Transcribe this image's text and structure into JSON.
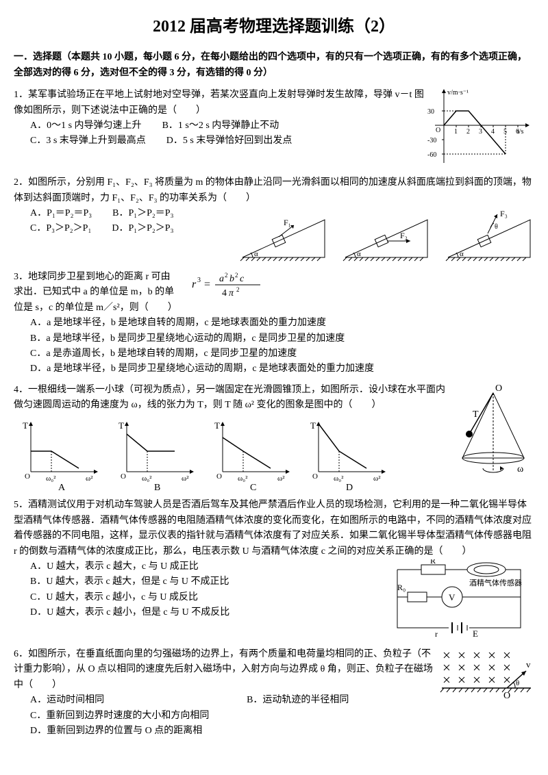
{
  "title": "2012 届高考物理选择题训练（2）",
  "instructions": "一．选择题（本题共 10 小题，每小题 6 分，在每小题给出的四个选项中，有的只有一个选项正确，有的有多个选项正确，全部选对的得 6 分，选对但不全的得 3 分，有选错的得 0 分）",
  "q1": {
    "text": "1．某军事试验场正在平地上试射地对空导弹，若某次竖直向上发射导弹时发生故障，导弹 v－t 图像如图所示，则下述说法中正确的是（　　）",
    "A": "A．0～1 s 内导弹匀速上升",
    "B": "B．1 s～2 s 内导弹静止不动",
    "C": "C．3 s 末导弹上升到最高点",
    "D": "D．5 s 末导弹恰好回到出发点",
    "chart": {
      "ylabel": "v/m·s⁻¹",
      "xlabel": "t/s",
      "yticks": [
        -60,
        -30,
        0,
        30
      ],
      "xticks": [
        0,
        1,
        2,
        3,
        4,
        5,
        6
      ],
      "points": [
        [
          0,
          0
        ],
        [
          1,
          30
        ],
        [
          2,
          30
        ],
        [
          3,
          0
        ],
        [
          5,
          -60
        ]
      ],
      "axis_color": "#000",
      "line_color": "#000"
    }
  },
  "q2": {
    "text": "2．如图所示，分别用 F₁、F₂、F₃ 将质量为 m 的物体由静止沿同一光滑斜面以相同的加速度从斜面底端拉到斜面的顶端，物体到达斜面顶端时，力 F₁、F₂、F₃ 的功率关系为（　　）",
    "A": "A．P₁＝P₂＝P₃",
    "B": "B．P₁＞P₂＝P₃",
    "C": "C．P₃＞P₂＞P₁",
    "D": "D．P₁＞P₂＞P₃",
    "diagram": {
      "angle_label": "α",
      "force_labels": [
        "F₁",
        "F₂",
        "F₃"
      ],
      "theta_label": "θ",
      "line_color": "#000"
    }
  },
  "q3": {
    "text_a": "3．地球同步卫星到地心的距离 r 可由",
    "text_b": "求出．已知式中 a 的单位是 m，b 的单",
    "text_c": "位是 s，c 的单位是 m／s²，则（　　）",
    "formula_img_alt": "r³ = a²b²c / 4π²",
    "A": "A．a 是地球半径，b 是地球自转的周期，c 是地球表面处的重力加速度",
    "B": "B．a 是地球半径，b 是同步卫星绕地心运动的周期，c 是同步卫星的加速度",
    "C": "C．a 是赤道周长，b 是地球自转的周期，c 是同步卫星的加速度",
    "D": "D．a 是地球半径，b 是同步卫星绕地心运动的周期，c 是地球表面处的重力加速度"
  },
  "q4": {
    "text": "4．一根细线一端系一小球（可视为质点），另一端固定在光滑圆锥顶上，如图所示．设小球在水平面内做匀速圆周运动的角速度为 ω，线的张力为 T，则 T 随 ω² 变化的图象是图中的（　　）",
    "xlabels": [
      "ω₀²",
      "ω²"
    ],
    "ylabel": "T",
    "opt_labels": [
      "A",
      "B",
      "C",
      "D"
    ],
    "cone_labels": {
      "T": "T",
      "O": "O",
      "omega": "ω"
    },
    "line_color": "#000"
  },
  "q5": {
    "text": "5．酒精测试仪用于对机动车驾驶人员是否酒后驾车及其他严禁酒后作业人员的现场检测，它利用的是一种二氧化锡半导体型酒精气体传感器．酒精气体传感器的电阻随酒精气体浓度的变化而变化，在如图所示的电路中，不同的酒精气体浓度对应着传感器的不同电阻，这样，显示仪表的指针就与酒精气体浓度有了对应关系．如果二氧化锡半导体型酒精气体传感器电阻 r 的倒数与酒精气体的浓度成正比，那么，电压表示数 U 与酒精气体浓度 c 之间的对应关系正确的是（　　）",
    "A": "A．U 越大，表示 c 越大，c 与 U 成正比",
    "B": "B．U 越大，表示 c 越大，但是 c 与 U 不成正比",
    "C": "C．U 越大，表示 c 越小，c 与 U 成反比",
    "D": "D．U 越大，表示 c 越小，但是 c 与 U 不成反比",
    "circuit": {
      "R": "R",
      "R0": "R₀",
      "V": "V",
      "r": "r",
      "E": "E",
      "sensor_label": "酒精气体传感器",
      "line_color": "#000"
    }
  },
  "q6": {
    "text": "6．如图所示，在垂直纸面向里的匀强磁场的边界上，有两个质量和电荷量均相同的正、负粒子（不计重力影响），从 O 点以相同的速度先后射入磁场中，入射方向与边界成 θ 角，则正、负粒子在磁场中（　　）",
    "A": "A．运动时间相同",
    "B": "B．运动轨迹的半径相同",
    "C": "C．重新回到边界时速度的大小和方向相同",
    "D": "D．重新回到边界的位置与 O 点的距离相",
    "diagram": {
      "theta": "θ",
      "v": "v",
      "O": "O",
      "line_color": "#000"
    }
  }
}
